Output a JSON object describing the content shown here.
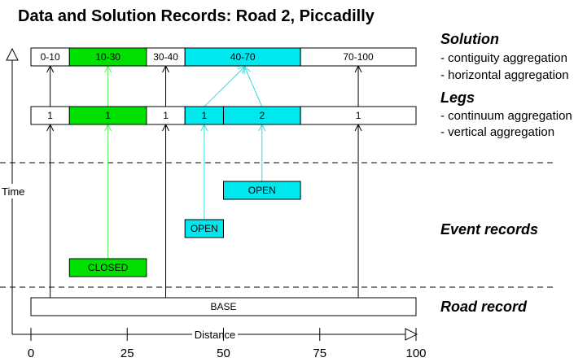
{
  "title": "Data and Solution Records: Road 2, Piccadilly",
  "colors": {
    "green": "#00e000",
    "cyan": "#00e8ee",
    "line_green": "#55ee55",
    "line_cyan": "#33dddd",
    "black": "#000000"
  },
  "solution": {
    "heading": "Solution",
    "items": [
      "- contiguity aggregation",
      "- horizontal aggregation"
    ],
    "segments": [
      {
        "label": "0-10",
        "from": 0,
        "to": 10,
        "fill": "none"
      },
      {
        "label": "10-30",
        "from": 10,
        "to": 30,
        "fill": "green"
      },
      {
        "label": "30-40",
        "from": 30,
        "to": 40,
        "fill": "none"
      },
      {
        "label": "40-70",
        "from": 40,
        "to": 70,
        "fill": "cyan"
      },
      {
        "label": "70-100",
        "from": 70,
        "to": 100,
        "fill": "none"
      }
    ]
  },
  "legs": {
    "heading": "Legs",
    "items": [
      "- continuum aggregation",
      "- vertical aggregation"
    ],
    "segments": [
      {
        "label": "1",
        "from": 0,
        "to": 10,
        "fill": "none"
      },
      {
        "label": "1",
        "from": 10,
        "to": 30,
        "fill": "green"
      },
      {
        "label": "1",
        "from": 30,
        "to": 40,
        "fill": "none"
      },
      {
        "label": "1",
        "from": 40,
        "to": 50,
        "fill": "cyan"
      },
      {
        "label": "2",
        "from": 50,
        "to": 70,
        "fill": "cyan"
      },
      {
        "label": "1",
        "from": 70,
        "to": 100,
        "fill": "none"
      }
    ]
  },
  "event_records": {
    "heading": "Event records",
    "events": [
      {
        "label": "OPEN",
        "from": 50,
        "to": 70,
        "fill": "cyan",
        "level": 1
      },
      {
        "label": "OPEN",
        "from": 40,
        "to": 50,
        "fill": "cyan",
        "level": 2
      },
      {
        "label": "CLOSED",
        "from": 10,
        "to": 30,
        "fill": "green",
        "level": 3
      }
    ]
  },
  "road_record": {
    "heading": "Road record",
    "base_label": "BASE",
    "from": 0,
    "to": 100
  },
  "axes": {
    "time_label": "Time",
    "distance_label": "Distance",
    "ticks": [
      0,
      25,
      50,
      75,
      100
    ]
  }
}
